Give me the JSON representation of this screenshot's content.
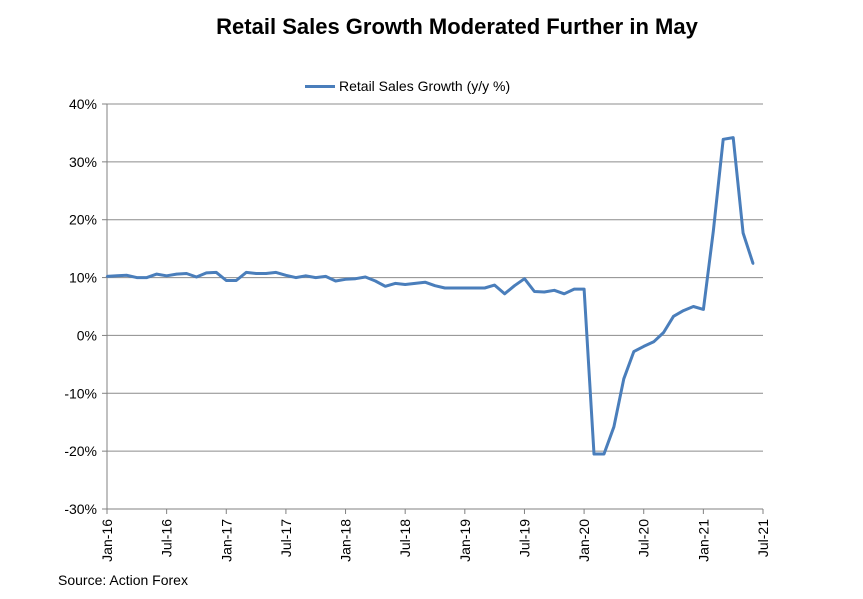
{
  "chart_data": {
    "type": "line",
    "title": "Retail Sales Growth Moderated Further in May",
    "source": "Source: Action Forex",
    "legend": "top-center",
    "grid": true,
    "ylim": [
      -30,
      40
    ],
    "y_ticks": [
      "40%",
      "30%",
      "20%",
      "10%",
      "0%",
      "-10%",
      "-20%",
      "-30%"
    ],
    "y_tick_values": [
      40,
      30,
      20,
      10,
      0,
      -10,
      -20,
      -30
    ],
    "x_ticks": [
      "Jan-16",
      "Jul-16",
      "Jan-17",
      "Jul-17",
      "Jan-18",
      "Jul-18",
      "Jan-19",
      "Jul-19",
      "Jan-20",
      "Jul-20",
      "Jan-21",
      "Jul-21"
    ],
    "x_tick_index": [
      0,
      6,
      12,
      18,
      24,
      30,
      36,
      42,
      48,
      54,
      60,
      66
    ],
    "x_range": [
      0,
      66
    ],
    "series": [
      {
        "name": "Retail Sales Growth (y/y %)",
        "color": "#4a7ebb",
        "values": [
          10.2,
          10.3,
          10.4,
          10.0,
          10.0,
          10.6,
          10.3,
          10.6,
          10.7,
          10.1,
          10.8,
          10.9,
          9.5,
          9.5,
          10.9,
          10.7,
          10.7,
          10.9,
          10.4,
          10.0,
          10.3,
          10.0,
          10.2,
          9.4,
          9.7,
          9.8,
          10.1,
          9.4,
          8.5,
          9.0,
          8.8,
          9.0,
          9.2,
          8.6,
          8.2,
          8.2,
          8.2,
          8.2,
          8.2,
          8.7,
          7.2,
          8.6,
          9.8,
          7.6,
          7.5,
          7.8,
          7.2,
          8.0,
          8.0,
          -20.5,
          -20.5,
          -15.8,
          -7.5,
          -2.8,
          -1.9,
          -1.1,
          0.5,
          3.3,
          4.3,
          5.0,
          4.5,
          18.0,
          33.9,
          34.2,
          17.7,
          12.4
        ]
      }
    ]
  }
}
